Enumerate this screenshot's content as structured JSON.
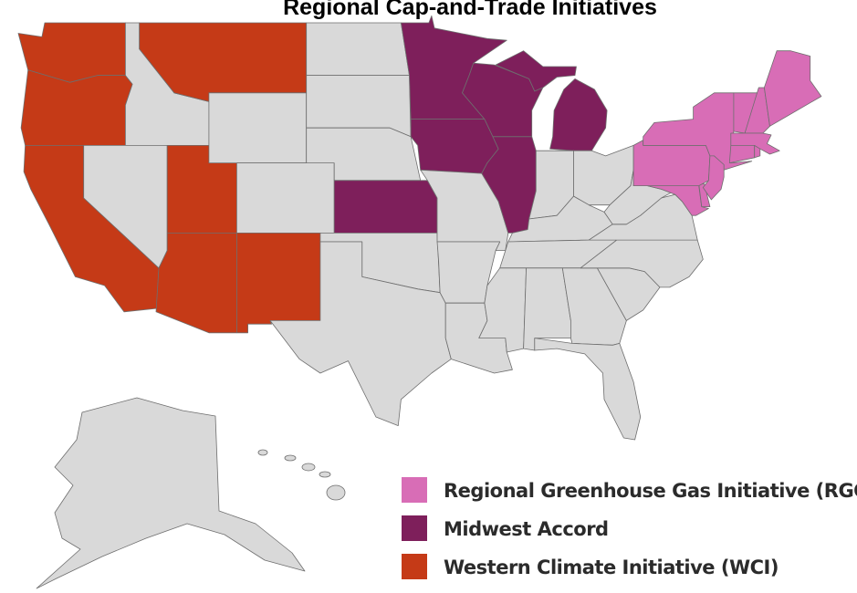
{
  "title": "Regional Cap-and-Trade Initiatives",
  "legend": [
    {
      "label": "Regional Greenhouse Gas Initiative (RGGI)",
      "color": "#d86db6"
    },
    {
      "label": "Midwest Accord",
      "color": "#7e1f5b"
    },
    {
      "label": "Western Climate Initiative (WCI)",
      "color": "#c53a17"
    }
  ]
}
